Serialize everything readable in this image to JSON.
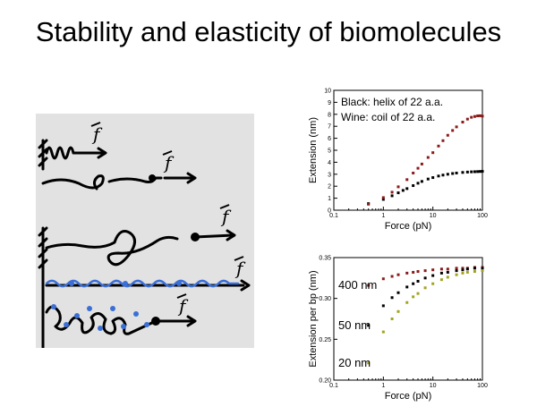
{
  "slide": {
    "title": "Stability and elasticity of biomolecules"
  },
  "sketch": {
    "force_label": "f",
    "icons": [
      "force-arrow-icon",
      "wall-anchor-icon",
      "bead-icon"
    ]
  },
  "colors": {
    "black": "#000000",
    "wine": "#8b1a1a",
    "olive": "#a3a320",
    "blue": "#3b6fd6",
    "panel": "#e2e2e2"
  },
  "chart_data": [
    {
      "type": "scatter",
      "title": "",
      "xlabel": "Force (pN)",
      "ylabel": "Extension (nm)",
      "xscale": "log",
      "xlim": [
        0.1,
        100
      ],
      "ylim": [
        0,
        10
      ],
      "xticks": [
        "0.1",
        "1",
        "10",
        "100"
      ],
      "yticks": [
        "0",
        "1",
        "2",
        "3",
        "4",
        "5",
        "6",
        "7",
        "8",
        "9",
        "10"
      ],
      "annotations": [
        "Black: helix of 22 a.a.",
        "Wine: coil of 22 a.a."
      ],
      "series": [
        {
          "color": "#000000",
          "x": [
            0.5,
            1,
            1.5,
            2,
            2.5,
            3,
            4,
            5,
            6,
            8,
            10,
            13,
            16,
            20,
            25,
            30,
            40,
            50,
            60,
            70,
            80,
            90,
            100
          ],
          "y": [
            0.55,
            0.9,
            1.2,
            1.45,
            1.65,
            1.8,
            2.05,
            2.25,
            2.4,
            2.6,
            2.72,
            2.85,
            2.93,
            3.0,
            3.06,
            3.1,
            3.15,
            3.18,
            3.2,
            3.21,
            3.22,
            3.23,
            3.24
          ]
        },
        {
          "color": "#8b1a1a",
          "x": [
            0.5,
            1,
            1.5,
            2,
            3,
            4,
            5,
            6,
            8,
            10,
            13,
            16,
            20,
            25,
            30,
            40,
            50,
            60,
            70,
            80,
            90,
            100
          ],
          "y": [
            0.5,
            1.05,
            1.5,
            1.95,
            2.55,
            3.1,
            3.5,
            3.85,
            4.4,
            4.8,
            5.35,
            5.8,
            6.25,
            6.65,
            6.95,
            7.35,
            7.6,
            7.75,
            7.82,
            7.87,
            7.88,
            7.85
          ]
        }
      ]
    },
    {
      "type": "scatter",
      "title": "",
      "xlabel": "Force (pN)",
      "ylabel": "Extension per bp (nm)",
      "xscale": "log",
      "xlim": [
        0.1,
        100
      ],
      "ylim": [
        0.2,
        0.35
      ],
      "xticks": [
        "0.1",
        "1",
        "10",
        "100"
      ],
      "yticks": [
        "0.20",
        "0.25",
        "0.30",
        "0.35"
      ],
      "series": [
        {
          "name": "400 nm",
          "color": "#8b1a1a",
          "x": [
            0.5,
            1,
            1.5,
            2,
            3,
            4,
            5,
            7,
            10,
            15,
            20,
            30,
            40,
            50,
            70,
            100
          ],
          "y": [
            0.316,
            0.324,
            0.327,
            0.329,
            0.331,
            0.332,
            0.333,
            0.334,
            0.335,
            0.336,
            0.336,
            0.337,
            0.337,
            0.337,
            0.338,
            0.338
          ]
        },
        {
          "name": "50 nm",
          "color": "#000000",
          "x": [
            0.5,
            1,
            1.5,
            2,
            3,
            4,
            5,
            7,
            10,
            15,
            20,
            30,
            40,
            50,
            70,
            100
          ],
          "y": [
            0.267,
            0.291,
            0.301,
            0.307,
            0.314,
            0.318,
            0.321,
            0.325,
            0.328,
            0.331,
            0.332,
            0.334,
            0.335,
            0.336,
            0.337,
            0.337
          ]
        },
        {
          "name": "20 nm",
          "color": "#a3a320",
          "x": [
            0.5,
            1,
            1.5,
            2,
            3,
            4,
            5,
            7,
            10,
            15,
            20,
            30,
            40,
            50,
            70,
            100
          ],
          "y": [
            0.221,
            0.259,
            0.275,
            0.284,
            0.295,
            0.302,
            0.306,
            0.313,
            0.318,
            0.323,
            0.326,
            0.329,
            0.331,
            0.332,
            0.333,
            0.334
          ]
        }
      ]
    }
  ]
}
